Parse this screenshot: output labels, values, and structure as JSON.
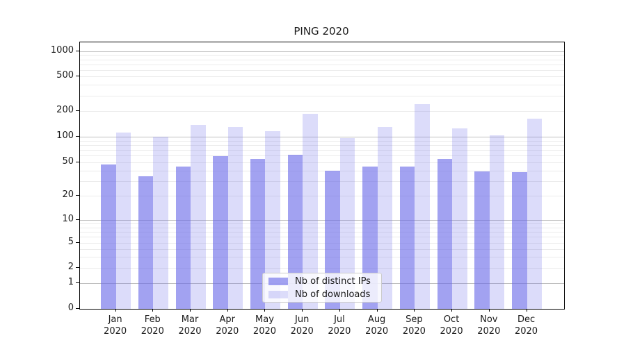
{
  "chart_data": {
    "type": "bar",
    "title": "PING 2020",
    "yscale": "symlog",
    "grid": "both",
    "legend_position": "lower center",
    "ylim": [
      0,
      1300
    ],
    "yticks": [
      0,
      1,
      2,
      5,
      10,
      20,
      50,
      100,
      200,
      500,
      1000
    ],
    "yticklabels": [
      "0",
      "1",
      "2",
      "5",
      "10",
      "20",
      "50",
      "100",
      "200",
      "500",
      "1000"
    ],
    "categories": [
      [
        "Jan",
        "2020"
      ],
      [
        "Feb",
        "2020"
      ],
      [
        "Mar",
        "2020"
      ],
      [
        "Apr",
        "2020"
      ],
      [
        "May",
        "2020"
      ],
      [
        "Jun",
        "2020"
      ],
      [
        "Jul",
        "2020"
      ],
      [
        "Aug",
        "2020"
      ],
      [
        "Sep",
        "2020"
      ],
      [
        "Oct",
        "2020"
      ],
      [
        "Nov",
        "2020"
      ],
      [
        "Dec",
        "2020"
      ]
    ],
    "series": [
      {
        "name": "Nb of distinct IPs",
        "color": "rgba(105,105,232,0.62)",
        "swatch_hex": "#a4a4f0",
        "values": [
          47,
          34,
          45,
          59,
          55,
          61,
          40,
          45,
          45,
          55,
          39,
          38
        ]
      },
      {
        "name": "Nb of downloads",
        "color": "rgba(105,105,232,0.235)",
        "swatch_hex": "#dbdbf8",
        "values": [
          112,
          100,
          137,
          130,
          117,
          185,
          97,
          130,
          240,
          125,
          103,
          162
        ]
      }
    ]
  }
}
